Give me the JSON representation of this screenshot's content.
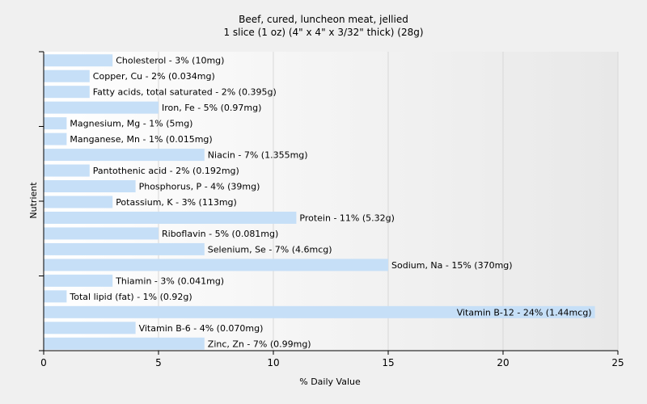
{
  "chart_data": {
    "type": "bar",
    "orientation": "horizontal",
    "title": "Beef, cured, luncheon meat, jellied",
    "subtitle": "1 slice (1 oz) (4\" x 4\" x 3/32\" thick) (28g)",
    "xlabel": "% Daily Value",
    "ylabel": "Nutrient",
    "xlim": [
      0,
      25
    ],
    "xticks": [
      0,
      5,
      10,
      15,
      20,
      25
    ],
    "grid": true,
    "bar_color": "#c6dff7",
    "categories": [
      "Cholesterol",
      "Copper, Cu",
      "Fatty acids, total saturated",
      "Iron, Fe",
      "Magnesium, Mg",
      "Manganese, Mn",
      "Niacin",
      "Pantothenic acid",
      "Phosphorus, P",
      "Potassium, K",
      "Protein",
      "Riboflavin",
      "Selenium, Se",
      "Sodium, Na",
      "Thiamin",
      "Total lipid (fat)",
      "Vitamin B-12",
      "Vitamin B-6",
      "Zinc, Zn"
    ],
    "values": [
      3,
      2,
      2,
      5,
      1,
      1,
      7,
      2,
      4,
      3,
      11,
      5,
      7,
      15,
      3,
      1,
      24,
      4,
      7
    ],
    "labels": [
      "Cholesterol - 3% (10mg)",
      "Copper, Cu - 2% (0.034mg)",
      "Fatty acids, total saturated - 2% (0.395g)",
      "Iron, Fe - 5% (0.97mg)",
      "Magnesium, Mg - 1% (5mg)",
      "Manganese, Mn - 1% (0.015mg)",
      "Niacin - 7% (1.355mg)",
      "Pantothenic acid - 2% (0.192mg)",
      "Phosphorus, P - 4% (39mg)",
      "Potassium, K - 3% (113mg)",
      "Protein - 11% (5.32g)",
      "Riboflavin - 5% (0.081mg)",
      "Selenium, Se - 7% (4.6mcg)",
      "Sodium, Na - 15% (370mg)",
      "Thiamin - 3% (0.041mg)",
      "Total lipid (fat) - 1% (0.92g)",
      "Vitamin B-12 - 24% (1.44mcg)",
      "Vitamin B-6 - 4% (0.070mg)",
      "Zinc, Zn - 7% (0.99mg)"
    ]
  }
}
